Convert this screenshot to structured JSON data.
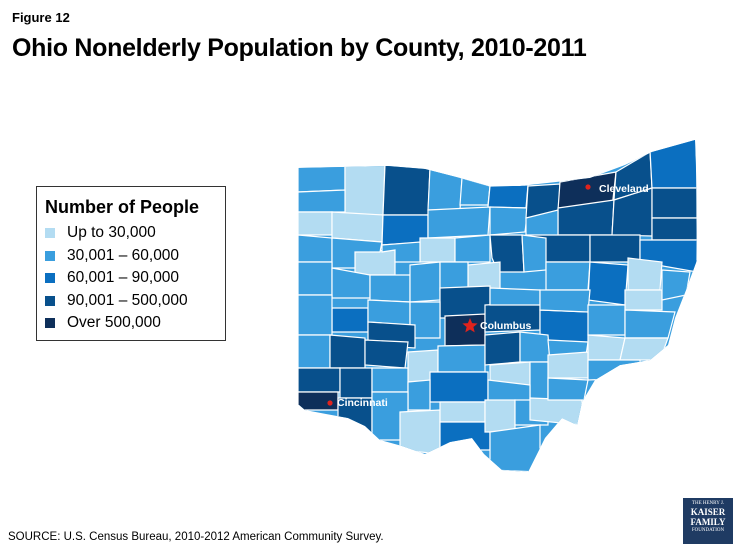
{
  "figure_label": "Figure 12",
  "title": "Ohio Nonelderly Population by County, 2010-2011",
  "legend": {
    "title": "Number of People",
    "items": [
      {
        "label": "Up to 30,000",
        "color": "#b3dcf2"
      },
      {
        "label": "30,001 – 60,000",
        "color": "#3a9ede"
      },
      {
        "label": "60,001 – 90,000",
        "color": "#0b6fc0"
      },
      {
        "label": "90,001 – 500,000",
        "color": "#08508c"
      },
      {
        "label": "Over 500,000",
        "color": "#0e2f5a"
      }
    ]
  },
  "map": {
    "cities": [
      {
        "name": "Cleveland",
        "marker": "dot",
        "marker_color": "#e0231d"
      },
      {
        "name": "Columbus",
        "marker": "star",
        "marker_color": "#e0231d"
      },
      {
        "name": "Cincinnati",
        "marker": "dot",
        "marker_color": "#e0231d"
      }
    ]
  },
  "source": "SOURCE: U.S. Census Bureau, 2010-2012 American Community Survey.",
  "logo": {
    "line1": "THE HENRY J.",
    "line2": "KAISER",
    "line3": "FAMILY",
    "line4": "FOUNDATION"
  }
}
